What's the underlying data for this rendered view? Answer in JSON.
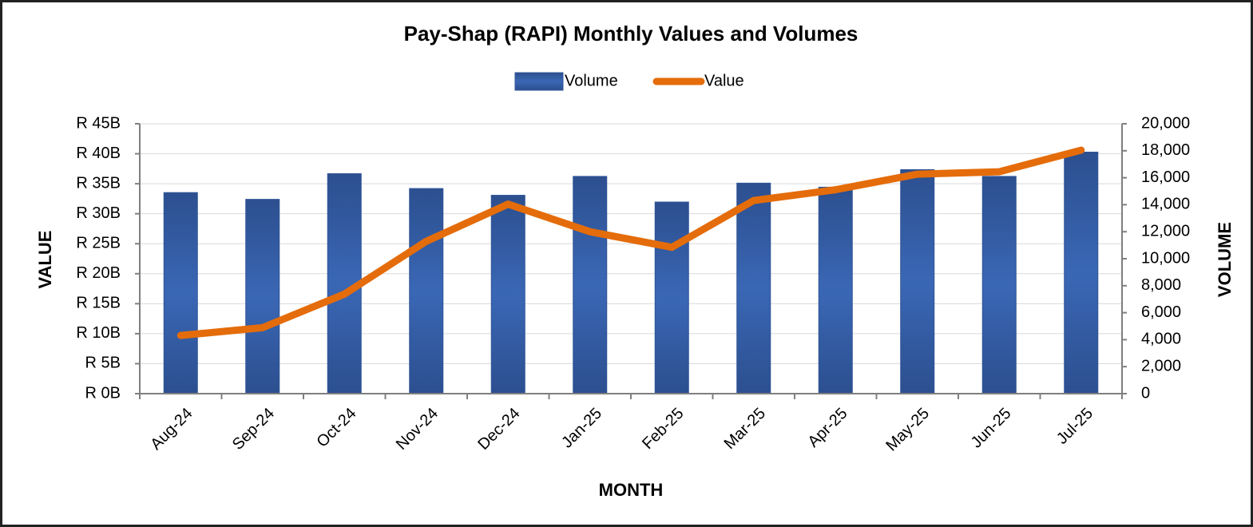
{
  "chart_data": {
    "type": "bar_line",
    "title": "Pay-Shap (RAPI) Monthly Values and Volumes",
    "xlabel": "MONTH",
    "ylabel": "VALUE",
    "y2label": "VOLUME",
    "categories": [
      "Aug-24",
      "Sep-24",
      "Oct-24",
      "Nov-24",
      "Dec-24",
      "Jan-25",
      "Feb-25",
      "Mar-25",
      "Apr-25",
      "May-25",
      "Jun-25",
      "Jul-25"
    ],
    "series": [
      {
        "name": "Volume",
        "type": "bar",
        "axis": "y2",
        "color": "#2f5597",
        "values": [
          14900,
          14400,
          16300,
          15200,
          14700,
          16100,
          14200,
          15600,
          15300,
          16600,
          16100,
          17900
        ]
      },
      {
        "name": "Value",
        "type": "line",
        "axis": "y",
        "color": "#e46c0a",
        "values": [
          9.7,
          11.0,
          16.6,
          25.4,
          31.6,
          27.0,
          24.4,
          32.2,
          34.0,
          36.6,
          37.0,
          40.6
        ]
      }
    ],
    "ylim": [
      0,
      45
    ],
    "yticks": [
      {
        "value": 0,
        "label": "R 0B"
      },
      {
        "value": 5,
        "label": "R 5B"
      },
      {
        "value": 10,
        "label": "R 10B"
      },
      {
        "value": 15,
        "label": "R 15B"
      },
      {
        "value": 20,
        "label": "R 20B"
      },
      {
        "value": 25,
        "label": "R 25B"
      },
      {
        "value": 30,
        "label": "R 30B"
      },
      {
        "value": 35,
        "label": "R 35B"
      },
      {
        "value": 40,
        "label": "R 40B"
      },
      {
        "value": 45,
        "label": "R 45B"
      }
    ],
    "y2lim": [
      0,
      20000
    ],
    "y2ticks": [
      0,
      {
        "value": 2000,
        "label": "2,000"
      },
      {
        "value": 4000,
        "label": "4,000"
      },
      {
        "value": 6000,
        "label": "6,000"
      },
      {
        "value": 8000,
        "label": "8,000"
      },
      {
        "value": 10000,
        "label": "10,000"
      },
      {
        "value": 12000,
        "label": "12,000"
      },
      {
        "value": 14000,
        "label": "14,000"
      },
      {
        "value": 16000,
        "label": "16,000"
      },
      {
        "value": 18000,
        "label": "18,000"
      },
      {
        "value": 20000,
        "label": "20,000"
      }
    ],
    "grid": true,
    "legend": "top"
  }
}
